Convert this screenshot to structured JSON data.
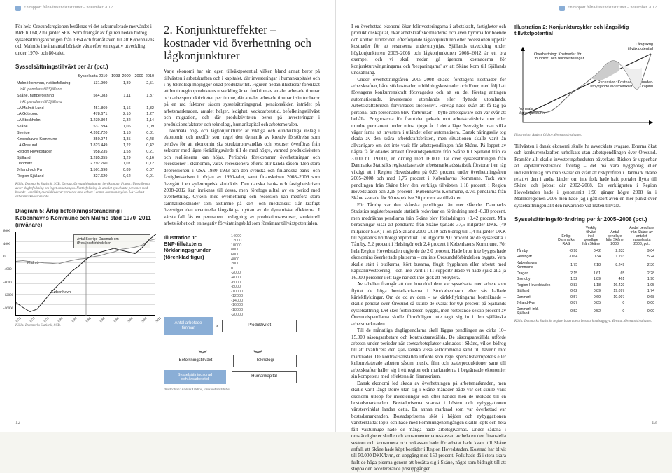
{
  "header": {
    "report_text": "En rapport från Øresundsinstituttet – november 2012",
    "page_left": "12",
    "page_right": "13"
  },
  "left": {
    "intro": "För hela Öresundsregionen beräknas vi det ackumulerade mervärdet i BRP till 68,2 miljarder SEK. Som framgår av figuren nedan bidrog sysselsättningsökningen från 1994 och framåt även till att Københavns och Malmös invånarantal började växa efter en negativ utveckling under 1970- och 80-talet.",
    "table1": {
      "title": "Sysselsättningstillväxt per år (pct.)",
      "cols": [
        "",
        "Sysselsatta 2010",
        "1993–2000",
        "2000–2010"
      ],
      "rows": [
        [
          "Malmö kommun, nattbefolkning",
          "131.900",
          "1,89",
          "2,51"
        ],
        [
          "inkl. pendlare till Själland",
          "",
          "",
          ""
        ],
        [
          "Skåne, nattbefolkning",
          "564.083",
          "1,11",
          "1,37"
        ],
        [
          "inkl. pendlare till Själland",
          "",
          "",
          ""
        ],
        [
          "LA Malmö-Lund",
          "451.869",
          "1,16",
          "1,32"
        ],
        [
          "LA Göteborg",
          "478.671",
          "2,10",
          "1,27"
        ],
        [
          "LA Stockholm",
          "1.230.304",
          "2,32",
          "1,14"
        ],
        [
          "Skåne",
          "537.594",
          "1,06",
          "1,09"
        ],
        [
          "Sverige",
          "4.392.720",
          "1,18",
          "0,81"
        ],
        [
          "Københavns Kommune",
          "350.974",
          "1,35",
          "0,48"
        ],
        [
          "LA Øresund",
          "1.823.449",
          "1,22",
          "0,42"
        ],
        [
          "Region Hovedstaden",
          "958.235",
          "1,53",
          "0,21"
        ],
        [
          "Själland",
          "1.285.855",
          "1,29",
          "0,16"
        ],
        [
          "Danmark",
          "2.792.760",
          "1,07",
          "0,12"
        ],
        [
          "Jylland och Fyn",
          "1.501.698",
          "0,89",
          "0,07"
        ],
        [
          "Region Själland",
          "327.620",
          "0,62",
          "0,01"
        ]
      ],
      "source": "Källa: Danmarks Statistik, SCB, Ørestat. Øresundsinstituttets beräkningar. Fotnot: Uppgifterna avser dagbefolkning om inget annat anges. Nattbefolkning är antalet sysselsatta personer med boende i området, men inkluderar personer med arbete i annan kommun/region. LA=Lokalt arbetsmarknadsområde."
    },
    "chart5": {
      "title": "Diagram 5: Årlig befolkningsförändring i Københavns Kommune och Malmö stad 1970–2011 (invånare)",
      "ylim": [
        -18000,
        8000
      ],
      "ytick_step": 2000,
      "years": [
        1971,
        1973,
        1975,
        1977,
        1979,
        1981,
        1983,
        1985,
        1987,
        1989,
        1991,
        1993,
        1995,
        1997,
        1999,
        2001,
        2003,
        2005,
        2007,
        2009,
        2011
      ],
      "avtal_box": "Avtal Sverige-Danmark om\nØresundsförbindelsen",
      "malmo_label": "Malmö",
      "kbh_label": "København",
      "line_color_malmo": "#888888",
      "line_color_kbh": "#222222",
      "box_line_color": "#888888",
      "source": "Källa: Danmarks Statistik, SCB.",
      "series_malmo": [
        -1200,
        -1000,
        -1300,
        -1500,
        -1700,
        -1800,
        -2000,
        -1400,
        -900,
        -500,
        -300,
        200,
        600,
        1200,
        1700,
        2500,
        2800,
        3200,
        3800,
        5200,
        5800
      ],
      "series_kbh": [
        -14000,
        -15500,
        -16800,
        -16000,
        -13500,
        -10800,
        -8600,
        -6500,
        -4200,
        -2600,
        -600,
        800,
        1600,
        2200,
        2800,
        2200,
        1700,
        1200,
        3000,
        5500,
        7200
      ]
    },
    "big_head": "2. Konjunktureffekter – kostnader vid överhettning och lågkonjunkturer",
    "body": [
      "Varje ekonomi har sin egen tillväxtpotential vilken bland annat beror på tillväxten i arbetskraften och i kapitalet, där investeringar i humankapitalet och i ny teknologi möjliggör ökad produktivitet. Figuren nedan illustrerar förenklat att bruttoregionproduktens utveckling är en funktion av antalet arbetade timmar och arbetsproduktiviteten per timme, där antalet arbetade timmar i sin tur beror på en rad faktorer såsom sysselsättningsgrad, pensionsålder, inträdet på arbetsmarknaden, antalet helger, ledighet, veckoarbetstid, befolkningstillväxt och migration, och där produktiviteten beror på investeringar i produktionsfaktorer och teknologi, humankapital och arbetsmoralen.",
      "Normala hög- och lågkonjunkturer är viktiga och oundvikliga inslag i ekonomin och medför som regel den dynamik av kreativ förstörelse som behövs för att ekonomin ska strukturomvandlas och resurser överföras från sektorer med lägre förädlingsvärde till de med högre, varmed produktiviteten och reallönerna kan höjas. Periodvis förekommer överhettningar och recessioner i ekonomin, varav recessionera efterat blir kända såsom 'Den stora depressionen' i USA 1930–1933 och den svenska och finländska bank- och fastighetskrisen i början av 1990-talet, samt finanskrisen 2008–2009 som övergått i en sydeuropeisk skuldkris. Den danska bank- och fastighetskrisen 2008–2012 kan inräknas till dessa, men förefogs alltså av en period med överhettning. Cykeln med överhettning och recession kan medföra stora samhällskostnader som alstimme på kort- och mediansikt slår kraftigt överstiger den eventuella långsiktiga nyttan av de dynamiska effekterna. I värsta fall fås en permanent utslagning av produktionsresurser, strukturell arbetslöshet och en negativ förväntningsbild som försämrar tillväxtpotentialen."
    ],
    "illus1": {
      "title": "Illustration 1:\nBNP-tillväxtens förklaringsgrunder (förenklad figur)",
      "top_left": "Antal arbetade\ntimmar",
      "top_right": "Produktivitet",
      "row2_left": "Befolkningstillväxt",
      "row2_right": "Teknologi",
      "row3_left": "Sysselsättningsgrad\noch årsarbetstid",
      "row3_right": "Humankapital",
      "ylabels": [
        "14000",
        "12000",
        "10000",
        "8000",
        "6000",
        "4000",
        "2000",
        "0",
        "-2000",
        "-4000",
        "-6000",
        "-8000",
        "-10000",
        "-12000",
        "-14000",
        "-16000",
        "-18000",
        "-20000"
      ],
      "source": "Illustration: Anders Olshov, Øresundsinstituttet."
    }
  },
  "right": {
    "body": [
      "I en överhettad ekonomi ökar felinvesteringarna i arbetskraft, fastigheter och produktionskapital, ökar arbetskraftskostnaderna och även hyrorna för boende och kontor. Under den efterföljande lågkonjunkturen eller recessionen uppstår kostnader för att resurserna underutnyttjas. Själlands utveckling under högkonjunkturen 2005–2008 och lågkonjunkturen 2008–2012 är ett bra exempel och vi skall nedan gå igenom kostnaderna för konjunktursvängningarna och 'besparingarna' av att Skåne kom till Själlands undsättning.",
      "Under överhettningsåren 2005–2008 ökade företagens kostnader för arbetskraften, både sökkostnader, utbildningskostnader och löner, med följd att företagens konkurrenskraft försvagades och att en del företag antingen automatiserade, investerade utomlands eller flyttade utomlands. Arbetskraftsbristen förvärrades successivt. Företag hade svårt att få tag på personal och personalen blev 'förbrukad' – bytte arbetsgivare och var svår att behålla. Prognoserna för framtiden pekade mot arbetskraftsbrist mer eller mindre permanent under minst tjugo år. I detta läge övervägde man vilka vägar fanns att investera i utländet eller automatisera. Dansk näringssliv tog skada av den svåra arbetskraftsbristen, men situationen skulle varit än allvarligare om det inte varit för arbetspendlingen från Skåne. På loppet av några få år ökades antalet Öresundspendlare från Skåne till Själland från ca 3.000 till 19.000, en ökning med 16.000. Tal över sysselsättningen från Danmarks Statistiks registerbaserade arbetsmarknadsstatistik förstorar i en räg viktigt att i Region Hovedstaden på 0,83 procent under överhettningsåren 2005–2008 och med 1,75 procent i Københavns Kommune. Tack vare pendlingen från Skåne blev den verkliga tillväxten 1,18 procent i Region Hovedstaden och 2,18 procent i Københavns Kommune, d.v.s. pendlarna från Skåne svarade för 30 respektive 20 procent av tillväxten.",
      "För Tårnby var den skånska pendlingen än mer slående. Danmarks Statistics registerbaserade statistik redovisar en förändring med -0,98 procent, men medräknas pendlarna från Skåne blev förändringen +0,42 procent. Min beräkningar visar att pendlarna från Skåne tjänade 37,5 miljarder DKK (49 miljarder SEK) i lön på Själland 2000–2010 och bidrog till 1,4 miljarder DKK till Själlands bruttoregionprodukt. De utgjorde 9,0 procent av de sysselsatta i Tårnby, 5,2 procent i Helsingör och 2,4 procent i Københavns Kommune. För hela Region Hovedstaden utgjorde de 2,0 procent. Hade bron inte byggts hade ekonomins överhettade platserna – om inte Öresundsförbindelsen byggts. Vem skulle stått i butikerna, kört busarna, flugit flygplanen eller arbetat med kapitalinvestetering – och inte varit i i IT-support? Hade vi hade sjukt alla ja 16.000 personer i ett läge när det inte gick att rekrytera.",
      "Av tabellen framgår att den huvuddel dem var sysselsatta med arbete som flyttat de höga bostadspriserna i Storkøbenhavn eller sås kallade kärlekflyktingar. Om de od av dem – av kärlekflyktingarna bortråknade – skulle pendlat över Öresund så skulle de svarat för 0,8 procent på Själlands sysselsättning. Det sker förbindelsen byggts, men resterande sextio procent av Öresundspendlarna skulle förmödligen inte tagit sig in i den själlänska arbetsmarknaden.",
      "Till de månatliga dagligpendlarna skall läggas pendlingen av cirka 10–15.000 säsongsarbetare och kontraktsanställda. De säsongsanställda utförde arbeten under perioder när spetsarbetsplatser saknades i Skåne, vilket bidrog till att kvalificera den själ- länska vissa sektoromrena samt till haverin mot marknader. De kontraktsanställda utförde som regel specialistkompetens eller kulturrelaterade arbeten såsom musik, film och teaterproduktioner samt till arbetskrafter haller sig i ett region och marknaderna i begränsade ekonomier sin kompetens med effektena än finanskrisen.",
      "Dansk ekonomi led skada av överhetningen på arbetsmarknaden, men skulle varit långt större utan sig i Skåne månader både var det skulle varit ekonomi utlopp för investeringar och efter handel men de utökade till en bostadsmarknaden. Bostadpriserna snarast i hösten och nybyggationen vänstervinklat landan detta. En annan marknad som var överhettad var bostadsmarknaden. Bostadspriserna sköt i höjden och nybyggationen vänsterklättat löpts och hade med kommungenomgången skulle löpts och hela fått vakturnuge hade de många hade arbetsgivarnas. Under sådana i omständigheter skulle och konsumenterna reskassan av hela en den finansiella sektorn och konsumera och reskassan hade för arbetat hade kvant till Skåne anfall, att Skåne hade köpt bostäder i Region Hovedstaden. Kostnad har blivit till 50.000 DKK/kvm, en uppgång med 150 procent. Folk hade då i stora skara fullt de höga piserna genom att bosätta sig i Skåne, något som bidragit till att stoppa den accelererande prisuppgången."
    ],
    "illus2": {
      "title": "Illustration 2: Konjunkturcykler och långsiktig tillväxtpotential",
      "label_top_right": "Långsiktig\ntillväxtpotential",
      "label_overh": "Överhettning: Kostnader för\n\"bubblor\" och felinvesteringar",
      "label_recession": "Recession: Kostnader för under-\nutnyttjande av arbetskraft och kapital",
      "label_normal": "Normala\nlågkonjunkturer",
      "line_color_potential": "#222222",
      "line_color_cycle": "#666666",
      "fill_over": "#cccccc",
      "fill_under": "#eeeeee",
      "source": "Illustration: Anders Olshov, Øresundsinstituttet."
    },
    "body2": [
      "Tillväxten i dansk ekonomi skulle ha avvecklats svagare, lönerna ökat och konkurrenskraften urholkats utan arbetspendlingen över Öresund. Framför allt skulle investeringsbesluten påverkats. Risken är uppenbar att kapitalinvesterande företag – det må vara byggbolag eller industriföretag om man svarar en svårt att riskprofilen i Danmark ökade relativt den i andra länder om inte folk hade haft portaler flytta till Skåne och jobbat där 2002–2008. En verkligheten i Region Hovedstaden hade i genomsnitt 1,90 gånger högre 2008 än i Malmöregionen 2006 men hade jag i gått stort även en mer punkt över sysselsättningen allt den nuvarande vid mäten tillväxt."
    ],
    "table2": {
      "title": "Sysselsättningsförändring per år 2005–2008 (pct.)",
      "cols": [
        "",
        "Enligt Danmarks\nRAS",
        "Verklig tillväxt\ninkl. pendlare\nfrån Skåne",
        "Antal pendlare\nfrån Skåne\n2008",
        "Andel pendlare\nfrån Skåne av\nantalet sysselsatta\n2008, pct."
      ],
      "rows": [
        [
          "Tårnby",
          "-0,98",
          "0,42",
          "2.333",
          "9,04"
        ],
        [
          "Helsingør",
          "-0,64",
          "0,34",
          "1.193",
          "5,24"
        ],
        [
          "Københavns Kommune",
          "1,75",
          "2,18",
          "8.249",
          "2,36"
        ],
        [
          "Dragør",
          "2,15",
          "1,61",
          "65",
          "2,28"
        ],
        [
          "Brøndby",
          "1,52",
          "1,89",
          "461",
          "1,90"
        ],
        [
          "Region Hovedstaden",
          "0,83",
          "1,18",
          "16.429",
          "1,95"
        ],
        [
          "Själland",
          "0,62",
          "0,89",
          "19.097",
          "1,74"
        ],
        [
          "Danmark",
          "0,57",
          "0,69",
          "19.097",
          "0,68"
        ],
        [
          "Jylland-Fyn",
          "0,87",
          "0,85",
          "0",
          "0,00"
        ],
        [
          "Danmark inkl. Själland",
          "0,52",
          "0,52",
          "0",
          "0,00"
        ]
      ],
      "source": "Källa: Danmarks Statistiks registerbaserade arbetsmarknadsuppgya. Ørestat. Øresundsinstituttet."
    }
  }
}
